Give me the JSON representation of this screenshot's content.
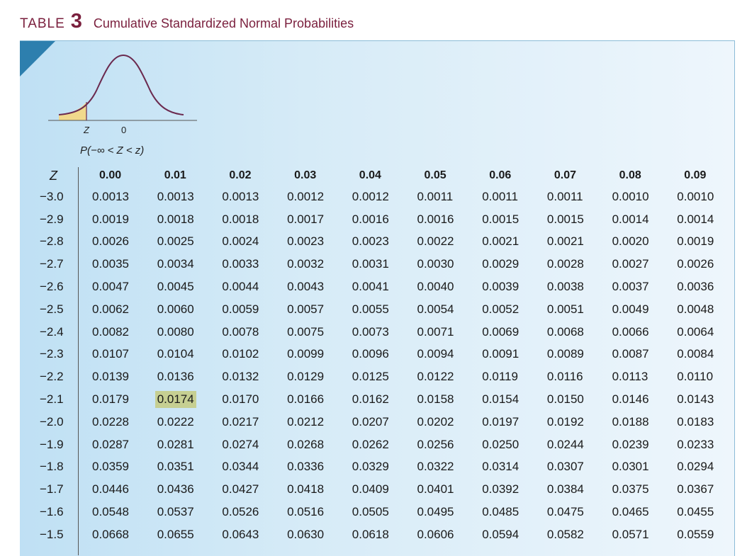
{
  "header": {
    "word": "TABLE",
    "number": "3",
    "title": "Cumulative Standardized Normal Probabilities"
  },
  "figure": {
    "z_label": "Z",
    "zero_label": "0",
    "prob_label": "P(−∞ < Z < z)",
    "curve_color": "#6b2a4f",
    "shade_color": "#f1d98c"
  },
  "colors": {
    "title": "#7a1f3d",
    "corner": "#2d7fae",
    "highlight": "#c6cf92"
  },
  "table": {
    "z_header": "Z",
    "columns": [
      "0.00",
      "0.01",
      "0.02",
      "0.03",
      "0.04",
      "0.05",
      "0.06",
      "0.07",
      "0.08",
      "0.09"
    ],
    "rows": [
      {
        "z": "−3.0",
        "v": [
          "0.0013",
          "0.0013",
          "0.0013",
          "0.0012",
          "0.0012",
          "0.0011",
          "0.0011",
          "0.0011",
          "0.0010",
          "0.0010"
        ]
      },
      {
        "z": "−2.9",
        "v": [
          "0.0019",
          "0.0018",
          "0.0018",
          "0.0017",
          "0.0016",
          "0.0016",
          "0.0015",
          "0.0015",
          "0.0014",
          "0.0014"
        ]
      },
      {
        "z": "−2.8",
        "v": [
          "0.0026",
          "0.0025",
          "0.0024",
          "0.0023",
          "0.0023",
          "0.0022",
          "0.0021",
          "0.0021",
          "0.0020",
          "0.0019"
        ]
      },
      {
        "z": "−2.7",
        "v": [
          "0.0035",
          "0.0034",
          "0.0033",
          "0.0032",
          "0.0031",
          "0.0030",
          "0.0029",
          "0.0028",
          "0.0027",
          "0.0026"
        ]
      },
      {
        "z": "−2.6",
        "v": [
          "0.0047",
          "0.0045",
          "0.0044",
          "0.0043",
          "0.0041",
          "0.0040",
          "0.0039",
          "0.0038",
          "0.0037",
          "0.0036"
        ]
      },
      {
        "z": "−2.5",
        "v": [
          "0.0062",
          "0.0060",
          "0.0059",
          "0.0057",
          "0.0055",
          "0.0054",
          "0.0052",
          "0.0051",
          "0.0049",
          "0.0048"
        ]
      },
      {
        "z": "−2.4",
        "v": [
          "0.0082",
          "0.0080",
          "0.0078",
          "0.0075",
          "0.0073",
          "0.0071",
          "0.0069",
          "0.0068",
          "0.0066",
          "0.0064"
        ]
      },
      {
        "z": "−2.3",
        "v": [
          "0.0107",
          "0.0104",
          "0.0102",
          "0.0099",
          "0.0096",
          "0.0094",
          "0.0091",
          "0.0089",
          "0.0087",
          "0.0084"
        ]
      },
      {
        "z": "−2.2",
        "v": [
          "0.0139",
          "0.0136",
          "0.0132",
          "0.0129",
          "0.0125",
          "0.0122",
          "0.0119",
          "0.0116",
          "0.0113",
          "0.0110"
        ]
      },
      {
        "z": "−2.1",
        "v": [
          "0.0179",
          "0.0174",
          "0.0170",
          "0.0166",
          "0.0162",
          "0.0158",
          "0.0154",
          "0.0150",
          "0.0146",
          "0.0143"
        ],
        "highlight": 1
      },
      {
        "z": "−2.0",
        "v": [
          "0.0228",
          "0.0222",
          "0.0217",
          "0.0212",
          "0.0207",
          "0.0202",
          "0.0197",
          "0.0192",
          "0.0188",
          "0.0183"
        ]
      },
      {
        "z": "−1.9",
        "v": [
          "0.0287",
          "0.0281",
          "0.0274",
          "0.0268",
          "0.0262",
          "0.0256",
          "0.0250",
          "0.0244",
          "0.0239",
          "0.0233"
        ]
      },
      {
        "z": "−1.8",
        "v": [
          "0.0359",
          "0.0351",
          "0.0344",
          "0.0336",
          "0.0329",
          "0.0322",
          "0.0314",
          "0.0307",
          "0.0301",
          "0.0294"
        ]
      },
      {
        "z": "−1.7",
        "v": [
          "0.0446",
          "0.0436",
          "0.0427",
          "0.0418",
          "0.0409",
          "0.0401",
          "0.0392",
          "0.0384",
          "0.0375",
          "0.0367"
        ]
      },
      {
        "z": "−1.6",
        "v": [
          "0.0548",
          "0.0537",
          "0.0526",
          "0.0516",
          "0.0505",
          "0.0495",
          "0.0485",
          "0.0475",
          "0.0465",
          "0.0455"
        ]
      },
      {
        "z": "−1.5",
        "v": [
          "0.0668",
          "0.0655",
          "0.0643",
          "0.0630",
          "0.0618",
          "0.0606",
          "0.0594",
          "0.0582",
          "0.0571",
          "0.0559"
        ]
      }
    ]
  }
}
